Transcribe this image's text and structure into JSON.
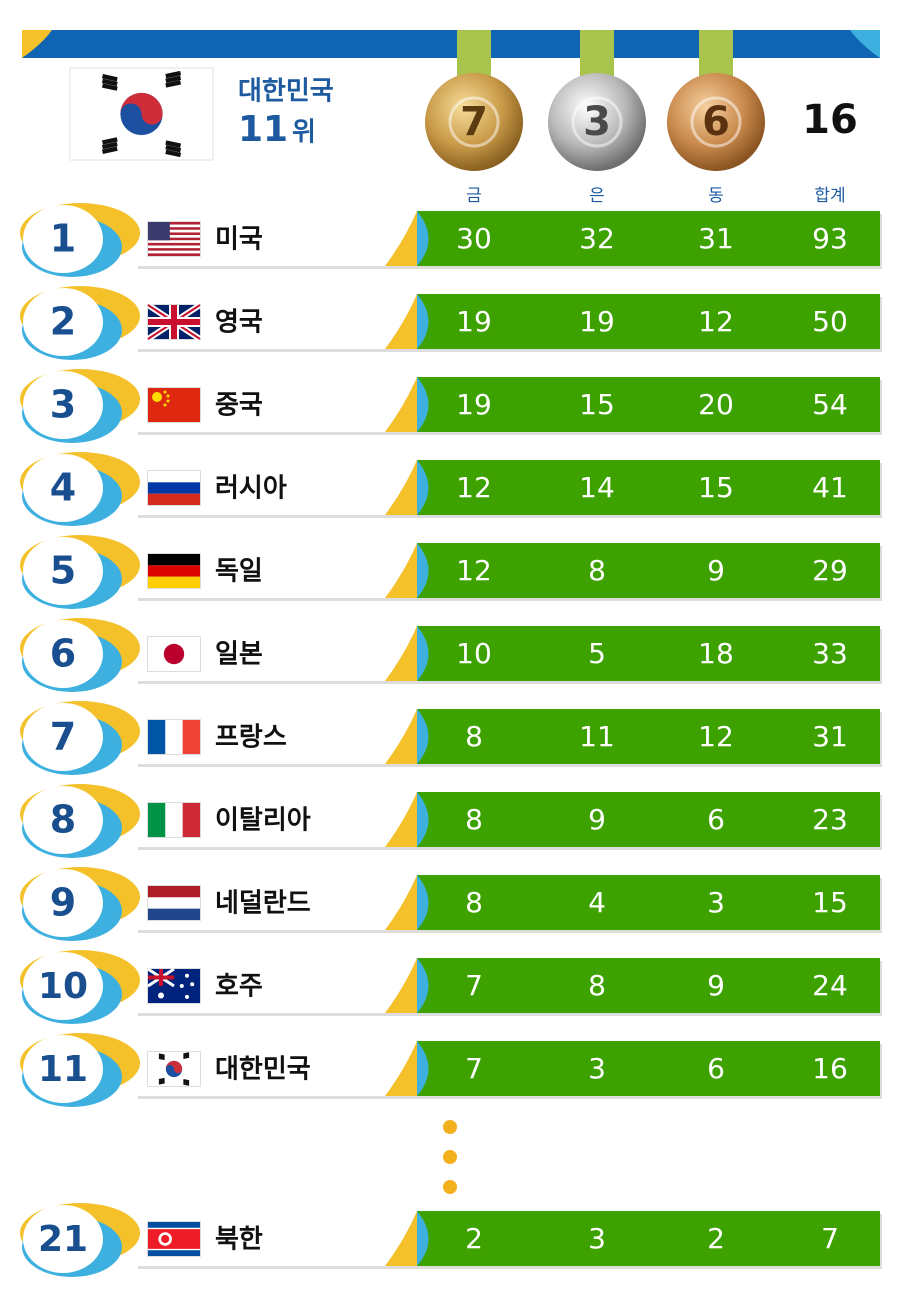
{
  "header": {
    "country": "대한민국",
    "rank": "11",
    "rank_suffix": "위",
    "gold": 7,
    "silver": 3,
    "bronze": 6,
    "total": 16
  },
  "columns": [
    "금",
    "은",
    "동",
    "합계"
  ],
  "rows": [
    {
      "rank": 1,
      "country": "미국",
      "gold": 30,
      "silver": 32,
      "bronze": 31,
      "total": 93
    },
    {
      "rank": 2,
      "country": "영국",
      "gold": 19,
      "silver": 19,
      "bronze": 12,
      "total": 50
    },
    {
      "rank": 3,
      "country": "중국",
      "gold": 19,
      "silver": 15,
      "bronze": 20,
      "total": 54
    },
    {
      "rank": 4,
      "country": "러시아",
      "gold": 12,
      "silver": 14,
      "bronze": 15,
      "total": 41
    },
    {
      "rank": 5,
      "country": "독일",
      "gold": 12,
      "silver": 8,
      "bronze": 9,
      "total": 29
    },
    {
      "rank": 6,
      "country": "일본",
      "gold": 10,
      "silver": 5,
      "bronze": 18,
      "total": 33
    },
    {
      "rank": 7,
      "country": "프랑스",
      "gold": 8,
      "silver": 11,
      "bronze": 12,
      "total": 31
    },
    {
      "rank": 8,
      "country": "이탈리아",
      "gold": 8,
      "silver": 9,
      "bronze": 6,
      "total": 23
    },
    {
      "rank": 9,
      "country": "네덜란드",
      "gold": 8,
      "silver": 4,
      "bronze": 3,
      "total": 15
    },
    {
      "rank": 10,
      "country": "호주",
      "gold": 7,
      "silver": 8,
      "bronze": 9,
      "total": 24
    },
    {
      "rank": 11,
      "country": "대한민국",
      "gold": 7,
      "silver": 3,
      "bronze": 6,
      "total": 16
    },
    {
      "rank": 21,
      "country": "북한",
      "gold": 2,
      "silver": 3,
      "bronze": 2,
      "total": 7
    }
  ]
}
